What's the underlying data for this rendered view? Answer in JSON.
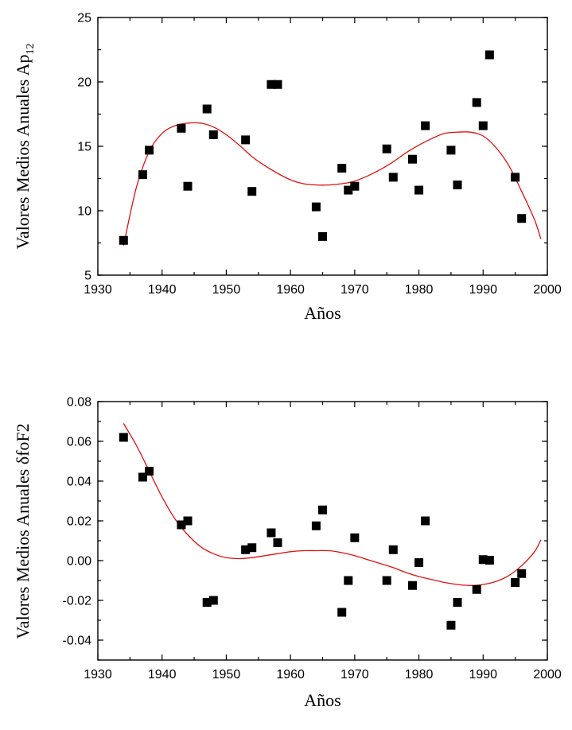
{
  "chart_data": [
    {
      "type": "scatter",
      "xlabel": "Años",
      "ylabel": {
        "base": "Valores Medios Anuales Ap",
        "subscript": "12"
      },
      "xlim": [
        1930,
        2000
      ],
      "ylim": [
        5,
        25
      ],
      "xticks": [
        "1930",
        "1940",
        "1950",
        "1960",
        "1970",
        "1980",
        "1990",
        "2000"
      ],
      "yticks": [
        "5",
        "10",
        "15",
        "20",
        "25"
      ],
      "xtick_values": [
        1930,
        1940,
        1950,
        1960,
        1970,
        1980,
        1990,
        2000
      ],
      "ytick_values": [
        5,
        10,
        15,
        20,
        25
      ],
      "points": [
        [
          1934,
          7.7
        ],
        [
          1937,
          12.8
        ],
        [
          1938,
          14.7
        ],
        [
          1943,
          16.4
        ],
        [
          1944,
          11.9
        ],
        [
          1947,
          17.9
        ],
        [
          1948,
          15.9
        ],
        [
          1953,
          15.5
        ],
        [
          1954,
          11.5
        ],
        [
          1957,
          19.8
        ],
        [
          1958,
          19.8
        ],
        [
          1964,
          10.3
        ],
        [
          1965,
          8.0
        ],
        [
          1968,
          13.3
        ],
        [
          1969,
          11.6
        ],
        [
          1970,
          11.9
        ],
        [
          1975,
          14.8
        ],
        [
          1976,
          12.6
        ],
        [
          1979,
          14.0
        ],
        [
          1980,
          11.6
        ],
        [
          1981,
          16.6
        ],
        [
          1985,
          14.7
        ],
        [
          1986,
          12.0
        ],
        [
          1989,
          18.4
        ],
        [
          1990,
          16.6
        ],
        [
          1991,
          22.1
        ],
        [
          1995,
          12.6
        ],
        [
          1996,
          9.4
        ]
      ],
      "fit_curve": [
        [
          1934,
          7.3
        ],
        [
          1936,
          11.8
        ],
        [
          1938,
          14.6
        ],
        [
          1940,
          16.0
        ],
        [
          1942,
          16.6
        ],
        [
          1944,
          16.8
        ],
        [
          1946,
          16.8
        ],
        [
          1948,
          16.5
        ],
        [
          1950,
          15.9
        ],
        [
          1952,
          15.1
        ],
        [
          1954,
          14.2
        ],
        [
          1956,
          13.5
        ],
        [
          1958,
          12.9
        ],
        [
          1960,
          12.4
        ],
        [
          1962,
          12.1
        ],
        [
          1964,
          12.0
        ],
        [
          1966,
          12.0
        ],
        [
          1968,
          12.1
        ],
        [
          1970,
          12.3
        ],
        [
          1972,
          12.7
        ],
        [
          1974,
          13.2
        ],
        [
          1976,
          13.8
        ],
        [
          1978,
          14.5
        ],
        [
          1980,
          15.1
        ],
        [
          1982,
          15.6
        ],
        [
          1984,
          16.0
        ],
        [
          1986,
          16.1
        ],
        [
          1988,
          16.1
        ],
        [
          1990,
          15.8
        ],
        [
          1992,
          14.9
        ],
        [
          1994,
          13.5
        ],
        [
          1996,
          11.5
        ],
        [
          1998,
          9.3
        ],
        [
          1999,
          7.8
        ]
      ],
      "fit_color": "#e01010",
      "marker_color": "#000000",
      "grid": false
    },
    {
      "type": "scatter",
      "xlabel": "Años",
      "ylabel": "Valores Medios Anuales δfoF2",
      "xlim": [
        1930,
        2000
      ],
      "ylim": [
        -0.05,
        0.08
      ],
      "xticks": [
        "1930",
        "1940",
        "1950",
        "1960",
        "1970",
        "1980",
        "1990",
        "2000"
      ],
      "yticks": [
        "-0.04",
        "-0.02",
        "0.00",
        "0.02",
        "0.04",
        "0.06",
        "0.08"
      ],
      "xtick_values": [
        1930,
        1940,
        1950,
        1960,
        1970,
        1980,
        1990,
        2000
      ],
      "ytick_values": [
        -0.04,
        -0.02,
        0.0,
        0.02,
        0.04,
        0.06,
        0.08
      ],
      "points": [
        [
          1934,
          0.062
        ],
        [
          1937,
          0.042
        ],
        [
          1938,
          0.045
        ],
        [
          1943,
          0.018
        ],
        [
          1944,
          0.02
        ],
        [
          1947,
          -0.021
        ],
        [
          1948,
          -0.02
        ],
        [
          1953,
          0.0055
        ],
        [
          1954,
          0.0065
        ],
        [
          1957,
          0.014
        ],
        [
          1958,
          0.009
        ],
        [
          1964,
          0.0175
        ],
        [
          1965,
          0.0255
        ],
        [
          1968,
          -0.026
        ],
        [
          1969,
          -0.01
        ],
        [
          1970,
          0.0115
        ],
        [
          1975,
          -0.01
        ],
        [
          1976,
          0.0055
        ],
        [
          1979,
          -0.0125
        ],
        [
          1980,
          -0.001
        ],
        [
          1981,
          0.02
        ],
        [
          1985,
          -0.0325
        ],
        [
          1986,
          -0.021
        ],
        [
          1989,
          -0.0145
        ],
        [
          1990,
          0.0005
        ],
        [
          1991,
          0.0002
        ],
        [
          1995,
          -0.011
        ],
        [
          1996,
          -0.0065
        ]
      ],
      "fit_curve": [
        [
          1934,
          0.069
        ],
        [
          1936,
          0.058
        ],
        [
          1938,
          0.045
        ],
        [
          1940,
          0.032
        ],
        [
          1942,
          0.021
        ],
        [
          1944,
          0.013
        ],
        [
          1946,
          0.007
        ],
        [
          1948,
          0.0035
        ],
        [
          1950,
          0.0015
        ],
        [
          1952,
          0.001
        ],
        [
          1954,
          0.0015
        ],
        [
          1956,
          0.0025
        ],
        [
          1958,
          0.0035
        ],
        [
          1960,
          0.0045
        ],
        [
          1962,
          0.005
        ],
        [
          1964,
          0.005
        ],
        [
          1966,
          0.005
        ],
        [
          1968,
          0.004
        ],
        [
          1970,
          0.0025
        ],
        [
          1972,
          0.0005
        ],
        [
          1974,
          -0.0015
        ],
        [
          1976,
          -0.0035
        ],
        [
          1978,
          -0.006
        ],
        [
          1980,
          -0.008
        ],
        [
          1982,
          -0.0095
        ],
        [
          1984,
          -0.011
        ],
        [
          1986,
          -0.012
        ],
        [
          1988,
          -0.0125
        ],
        [
          1990,
          -0.012
        ],
        [
          1992,
          -0.0105
        ],
        [
          1994,
          -0.0075
        ],
        [
          1996,
          -0.0025
        ],
        [
          1998,
          0.0045
        ],
        [
          1999,
          0.0105
        ]
      ],
      "fit_color": "#e01010",
      "marker_color": "#000000",
      "grid": false
    }
  ]
}
